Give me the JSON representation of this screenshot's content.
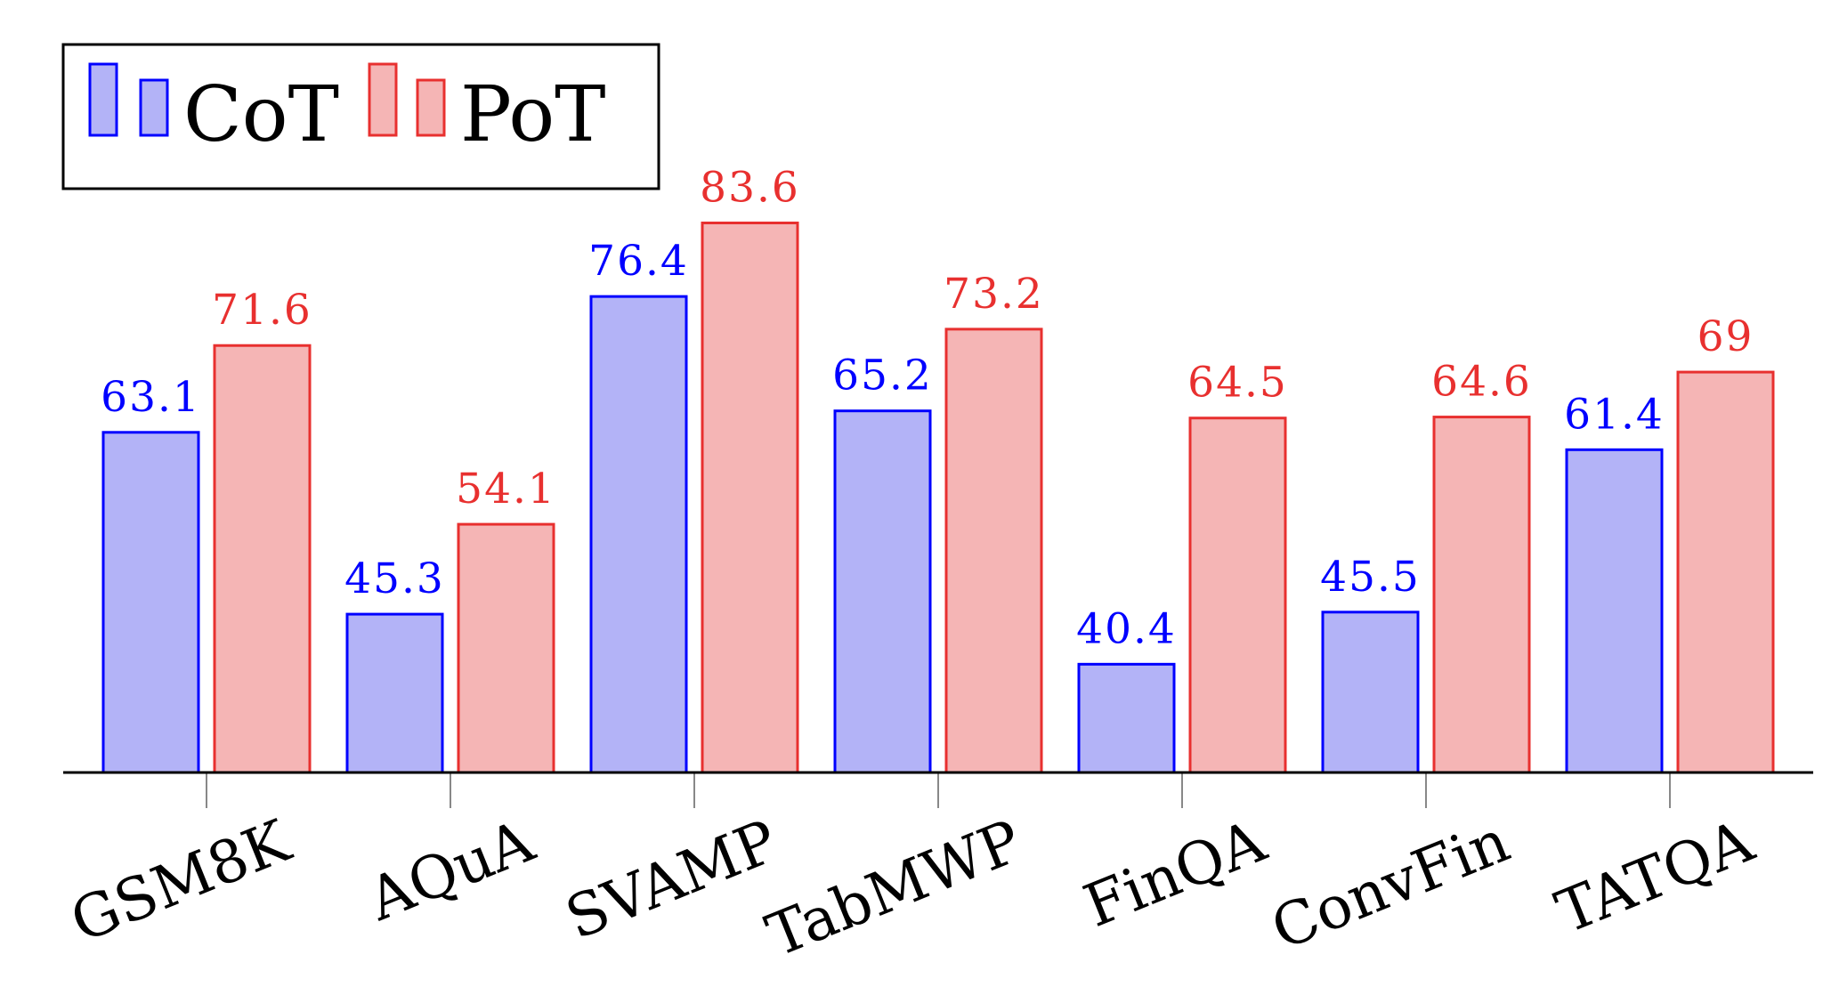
{
  "chart_data": {
    "type": "bar",
    "categories": [
      "GSM8K",
      "AQuA",
      "SVAMP",
      "TabMWP",
      "FinQA",
      "ConvFin",
      "TATQA"
    ],
    "series": [
      {
        "name": "CoT",
        "values": [
          63.1,
          45.3,
          76.4,
          65.2,
          40.4,
          45.5,
          61.4
        ],
        "labels": [
          "63.1",
          "45.3",
          "76.4",
          "65.2",
          "40.4",
          "45.5",
          "61.4"
        ],
        "color": "#0000ff",
        "fill": "#b3b3f7"
      },
      {
        "name": "PoT",
        "values": [
          71.6,
          54.1,
          83.6,
          73.2,
          64.5,
          64.6,
          69
        ],
        "labels": [
          "71.6",
          "54.1",
          "83.6",
          "73.2",
          "64.5",
          "64.6",
          "69"
        ],
        "color": "#e8302f",
        "fill": "#f5b5b5"
      }
    ],
    "ylim": [
      29.8,
      88
    ],
    "grid": false,
    "legend_position": "top-left",
    "xlabel": "",
    "ylabel": ""
  }
}
